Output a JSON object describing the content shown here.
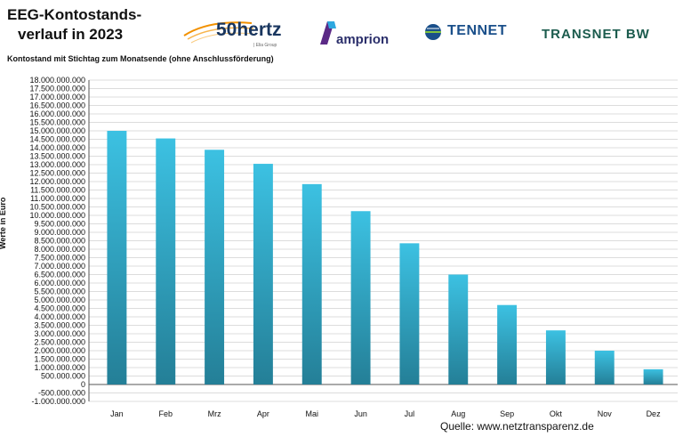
{
  "header": {
    "title_line1": "EEG-Kontostands-",
    "title_line2": "verlauf in 2023",
    "subtitle": "Kontostand mit Stichtag zum Monatsende (ohne Anschlussförderung)"
  },
  "logos": {
    "hertz_name": "50hertz",
    "hertz_sub": "| Elia Group",
    "amprion_name": "amprion",
    "tennet_name": "TENNET",
    "transnet_name": "TRANSNET BW"
  },
  "colors": {
    "bar_top": "#3cc1e2",
    "bar_bottom": "#247f97",
    "grid": "#b9b9b9"
  },
  "source": "Quelle:  www.netztransparenz.de",
  "chart_data": {
    "type": "bar",
    "title": "EEG-Kontostandsverlauf in 2023",
    "subtitle": "Kontostand mit Stichtag zum Monatsende (ohne Anschlussförderung)",
    "ylabel": "Werte in Euro",
    "xlabel": "",
    "ylim": [
      -1000000000,
      18000000000
    ],
    "grid": true,
    "categories": [
      "Jan",
      "Feb",
      "Mrz",
      "Apr",
      "Mai",
      "Jun",
      "Jul",
      "Aug",
      "Sep",
      "Okt",
      "Nov",
      "Dez"
    ],
    "values": [
      15000000000,
      14550000000,
      13880000000,
      13050000000,
      11850000000,
      10250000000,
      8350000000,
      6500000000,
      4700000000,
      3200000000,
      2000000000,
      900000000
    ],
    "yticks": [
      "18.000.000.000",
      "17.500.000.000",
      "17.000.000.000",
      "16.500.000.000",
      "16.000.000.000",
      "15.500.000.000",
      "15.000.000.000",
      "14.500.000.000",
      "14.000.000.000",
      "13.500.000.000",
      "13.000.000.000",
      "12.500.000.000",
      "12.000.000.000",
      "11.500.000.000",
      "11.000.000.000",
      "10.500.000.000",
      "10.000.000.000",
      "9.500.000.000",
      "9.000.000.000",
      "8.500.000.000",
      "8.000.000.000",
      "7.500.000.000",
      "7.000.000.000",
      "6.500.000.000",
      "6.000.000.000",
      "5.500.000.000",
      "5.000.000.000",
      "4.500.000.000",
      "4.000.000.000",
      "3.500.000.000",
      "3.000.000.000",
      "2.500.000.000",
      "2.000.000.000",
      "1.500.000.000",
      "1.000.000.000",
      "500.000.000",
      "0",
      "-500.000.000",
      "-1.000.000.000"
    ]
  }
}
